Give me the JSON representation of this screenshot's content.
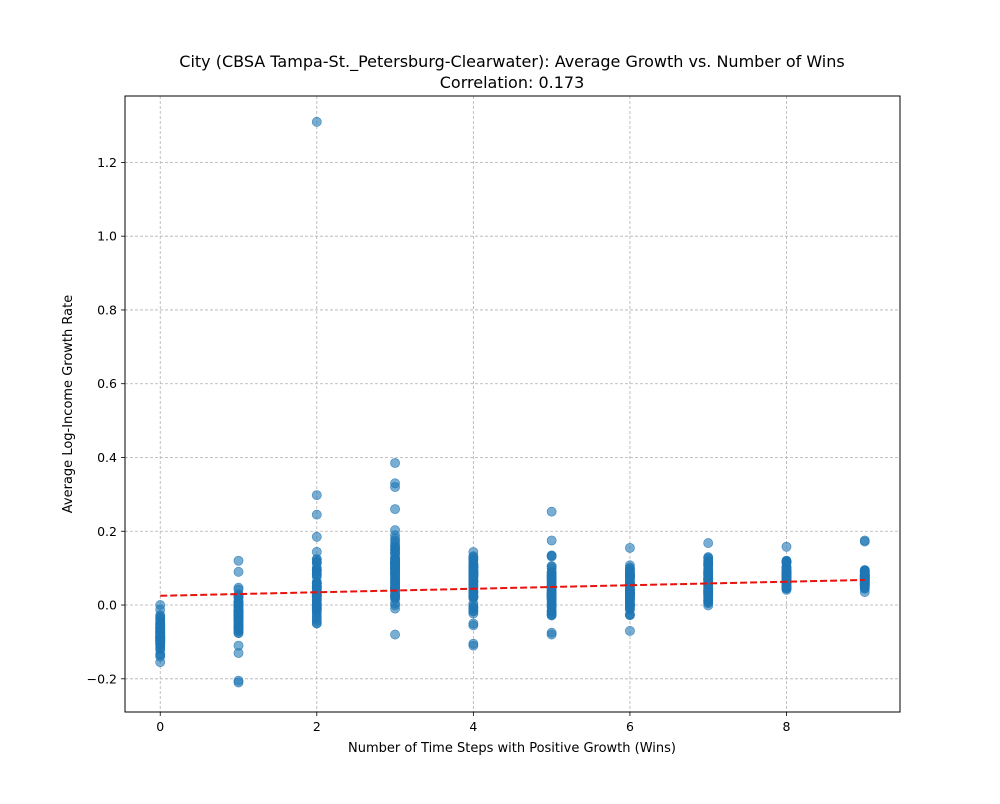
{
  "chart_data": {
    "type": "scatter",
    "title": "City (CBSA Tampa-St._Petersburg-Clearwater): Average Growth vs. Number of Wins",
    "subtitle": "Correlation: 0.173",
    "xlabel": "Number of Time Steps with Positive Growth (Wins)",
    "ylabel": "Average Log-Income Growth Rate",
    "xlim": [
      -0.45,
      9.45
    ],
    "ylim": [
      -0.29,
      1.38
    ],
    "xticks": [
      0,
      2,
      4,
      6,
      8
    ],
    "xtick_labels": [
      "0",
      "2",
      "4",
      "6",
      "8"
    ],
    "yticks": [
      -0.2,
      0.0,
      0.2,
      0.4,
      0.6,
      0.8,
      1.0,
      1.2
    ],
    "ytick_labels": [
      "−0.2",
      "0.0",
      "0.2",
      "0.4",
      "0.6",
      "0.8",
      "1.0",
      "1.2"
    ],
    "grid": true,
    "point_color": "#1f77b4",
    "trend_color": "#e8120c",
    "trend_line": {
      "x": [
        0,
        9
      ],
      "y": [
        0.025,
        0.068
      ]
    },
    "columns": [
      {
        "x": 0,
        "range": [
          -0.15,
          0.0
        ],
        "outliers": [
          -0.155,
          -0.14,
          -0.105,
          -0.095,
          -0.08,
          -0.065,
          -0.04,
          -0.03,
          0.0
        ]
      },
      {
        "x": 1,
        "range": [
          -0.1,
          0.07
        ],
        "outliers": [
          -0.21,
          -0.205,
          -0.13,
          -0.11,
          0.09,
          0.12
        ]
      },
      {
        "x": 2,
        "range": [
          -0.085,
          0.17
        ],
        "outliers": [
          0.185,
          0.245,
          0.298,
          1.31
        ]
      },
      {
        "x": 3,
        "range": [
          -0.06,
          0.235
        ],
        "outliers": [
          -0.08,
          0.26,
          0.32,
          0.33,
          0.385
        ]
      },
      {
        "x": 4,
        "range": [
          -0.045,
          0.18
        ],
        "outliers": [
          -0.11,
          -0.105,
          -0.055,
          -0.05
        ]
      },
      {
        "x": 5,
        "range": [
          -0.06,
          0.16
        ],
        "outliers": [
          -0.08,
          -0.075,
          0.175,
          0.253
        ]
      },
      {
        "x": 6,
        "range": [
          -0.055,
          0.145
        ],
        "outliers": [
          -0.07,
          0.155
        ]
      },
      {
        "x": 7,
        "range": [
          -0.03,
          0.16
        ],
        "outliers": [
          0.168
        ]
      },
      {
        "x": 8,
        "range": [
          0.015,
          0.145
        ],
        "outliers": [
          0.158
        ]
      },
      {
        "x": 9,
        "range": [
          0.03,
          0.11
        ],
        "outliers": [
          0.172,
          0.175
        ]
      }
    ]
  }
}
